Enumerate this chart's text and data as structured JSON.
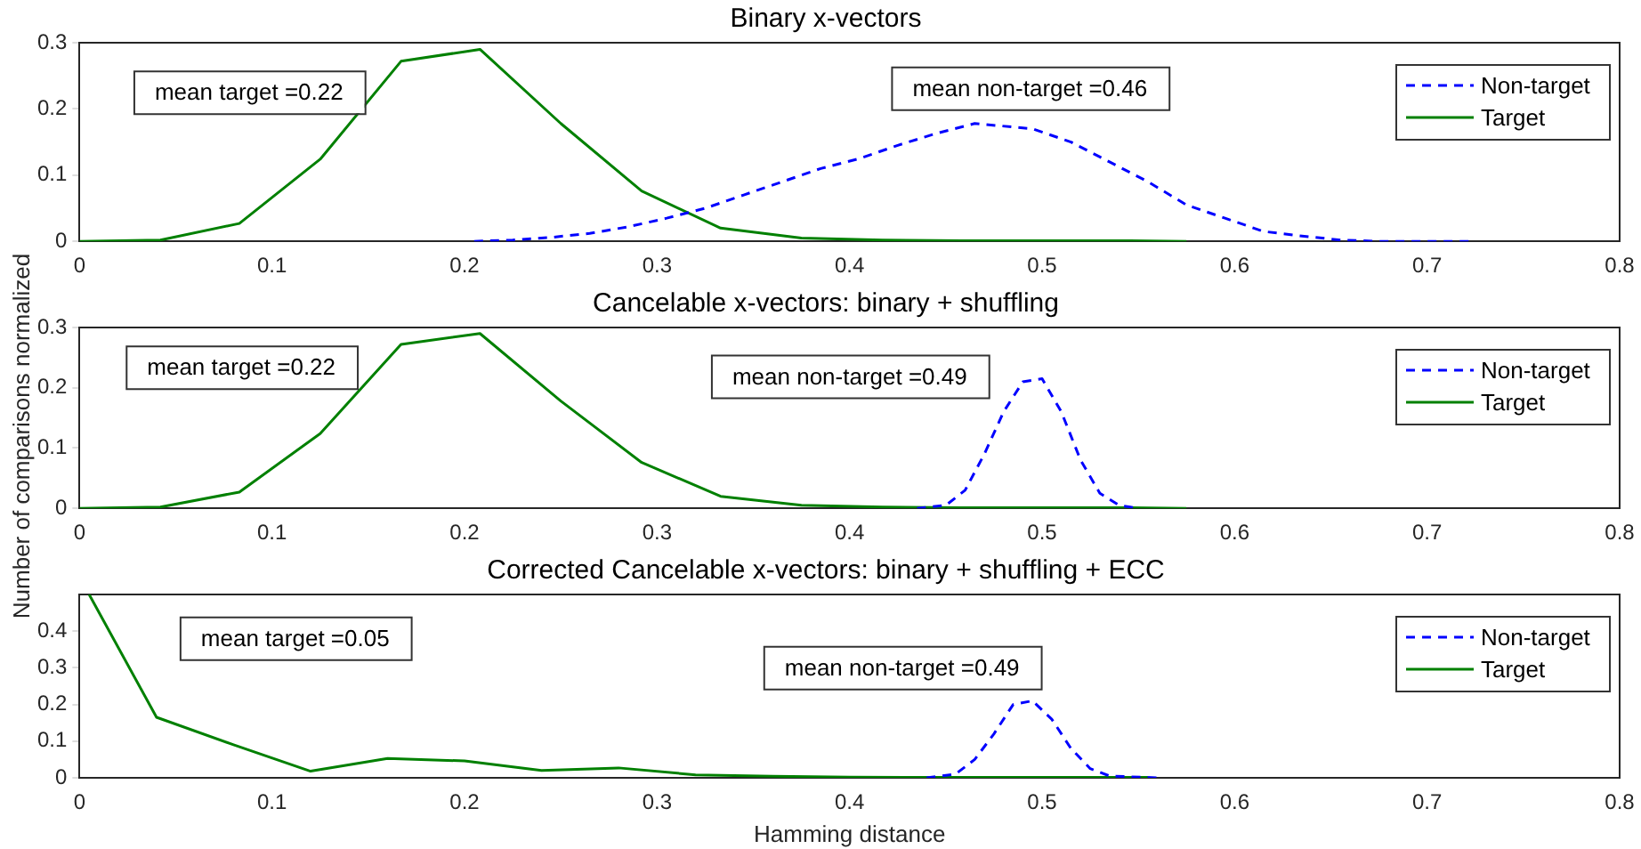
{
  "chart_data": [
    {
      "type": "line",
      "title": "Binary x-vectors",
      "xlim": [
        0,
        0.8
      ],
      "xticks": [
        0,
        0.1,
        0.2,
        0.3,
        0.4,
        0.5,
        0.6,
        0.7,
        0.8
      ],
      "ylim": [
        0,
        0.3
      ],
      "yticks": [
        0,
        0.1,
        0.2,
        0.3
      ],
      "grid": false,
      "legend": "top right",
      "marker": "none",
      "annotations": [
        "mean target =0.22",
        "mean non-target =0.46"
      ],
      "series": [
        {
          "name": "Non-target",
          "color": "#0000ff",
          "line_style": "dashed",
          "x": [
            0.205,
            0.225,
            0.245,
            0.265,
            0.285,
            0.305,
            0.325,
            0.345,
            0.365,
            0.385,
            0.405,
            0.425,
            0.445,
            0.465,
            0.495,
            0.515,
            0.535,
            0.555,
            0.575,
            0.595,
            0.615,
            0.635,
            0.655,
            0.675,
            0.725
          ],
          "values": [
            0,
            0.002,
            0.006,
            0.012,
            0.022,
            0.035,
            0.05,
            0.07,
            0.09,
            0.11,
            0.125,
            0.145,
            0.163,
            0.178,
            0.17,
            0.15,
            0.12,
            0.09,
            0.055,
            0.035,
            0.015,
            0.008,
            0.002,
            0,
            0
          ]
        },
        {
          "name": "Target",
          "color": "#008000",
          "line_style": "solid",
          "x": [
            0,
            0.042,
            0.083,
            0.125,
            0.167,
            0.208,
            0.25,
            0.292,
            0.333,
            0.375,
            0.417,
            0.458,
            0.5,
            0.542,
            0.575
          ],
          "values": [
            0,
            0.002,
            0.027,
            0.124,
            0.272,
            0.29,
            0.178,
            0.076,
            0.02,
            0.005,
            0.002,
            0.001,
            0.001,
            0.001,
            0
          ]
        }
      ]
    },
    {
      "type": "line",
      "title": "Cancelable x-vectors: binary + shuffling",
      "ylabel": "Number of comparisons normalized",
      "xlim": [
        0,
        0.8
      ],
      "xticks": [
        0,
        0.1,
        0.2,
        0.3,
        0.4,
        0.5,
        0.6,
        0.7,
        0.8
      ],
      "ylim": [
        0,
        0.3
      ],
      "yticks": [
        0,
        0.1,
        0.2,
        0.3
      ],
      "grid": false,
      "legend": "top right",
      "marker": "none",
      "annotations": [
        "mean target =0.22",
        "mean non-target =0.49"
      ],
      "series": [
        {
          "name": "Non-target",
          "color": "#0000ff",
          "line_style": "dashed",
          "x": [
            0.435,
            0.45,
            0.46,
            0.47,
            0.48,
            0.49,
            0.5,
            0.51,
            0.52,
            0.53,
            0.54,
            0.55
          ],
          "values": [
            0,
            0.005,
            0.03,
            0.09,
            0.16,
            0.21,
            0.215,
            0.16,
            0.08,
            0.025,
            0.005,
            0
          ]
        },
        {
          "name": "Target",
          "color": "#008000",
          "line_style": "solid",
          "x": [
            0,
            0.042,
            0.083,
            0.125,
            0.167,
            0.208,
            0.25,
            0.292,
            0.333,
            0.375,
            0.417,
            0.458,
            0.5,
            0.542,
            0.575
          ],
          "values": [
            0,
            0.002,
            0.027,
            0.124,
            0.272,
            0.29,
            0.178,
            0.076,
            0.02,
            0.005,
            0.002,
            0.001,
            0.001,
            0.001,
            0
          ]
        }
      ]
    },
    {
      "type": "line",
      "title": "Corrected Cancelable x-vectors: binary + shuffling + ECC",
      "xlabel": "Hamming distance",
      "xlim": [
        0,
        0.8
      ],
      "xticks": [
        0,
        0.1,
        0.2,
        0.3,
        0.4,
        0.5,
        0.6,
        0.7,
        0.8
      ],
      "ylim": [
        0,
        0.5
      ],
      "yticks": [
        0,
        0.1,
        0.2,
        0.3,
        0.4
      ],
      "grid": false,
      "legend": "top right",
      "marker": "none",
      "annotations": [
        "mean target =0.05",
        "mean non-target =0.49"
      ],
      "series": [
        {
          "name": "Non-target",
          "color": "#0000ff",
          "line_style": "dashed",
          "x": [
            0.44,
            0.455,
            0.465,
            0.475,
            0.485,
            0.495,
            0.505,
            0.515,
            0.525,
            0.535,
            0.56
          ],
          "values": [
            0,
            0.01,
            0.05,
            0.12,
            0.2,
            0.21,
            0.16,
            0.08,
            0.025,
            0.005,
            0
          ]
        },
        {
          "name": "Target",
          "color": "#008000",
          "line_style": "solid",
          "x": [
            0.005,
            0.04,
            0.08,
            0.12,
            0.16,
            0.2,
            0.24,
            0.28,
            0.32,
            0.36,
            0.4,
            0.44,
            0.48,
            0.52,
            0.555
          ],
          "values": [
            0.5,
            0.165,
            0.09,
            0.018,
            0.053,
            0.046,
            0.02,
            0.027,
            0.008,
            0.004,
            0.002,
            0.001,
            0.001,
            0.001,
            0.001
          ]
        }
      ]
    }
  ]
}
